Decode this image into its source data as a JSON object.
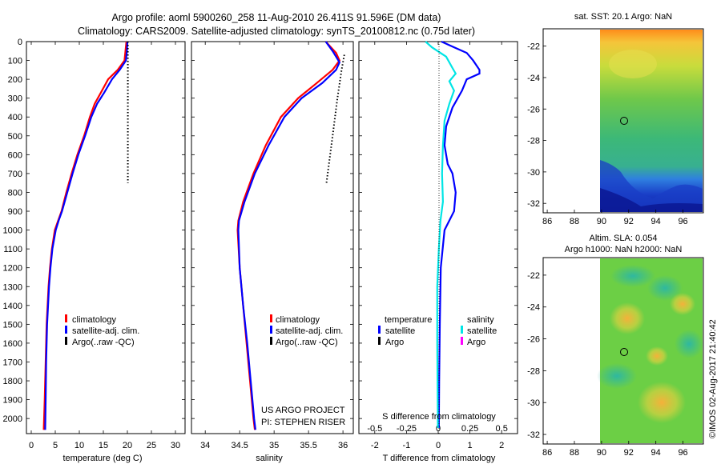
{
  "header": {
    "line1": "Argo profile: aoml 5900260_258 11-Aug-2010 26.411S 91.596E (DM data)",
    "line2": "Climatology: CARS2009. Satellite-adjusted climatology: synTS_20100812.nc (0.75d later)"
  },
  "colors": {
    "climatology": "#ff0000",
    "satellite": "#0000ff",
    "argo": "#000000",
    "sat_salinity": "#00e5e5",
    "argo_salinity": "#ff00ff"
  },
  "chart_data": [
    {
      "type": "line",
      "id": "temperature",
      "xlabel": "temperature (deg C)",
      "ylabel": "",
      "xlim": [
        -1,
        32
      ],
      "ylim": [
        2080,
        0
      ],
      "xticks": [
        "0",
        "5",
        "10",
        "15",
        "20",
        "25",
        "30"
      ],
      "yticks": [
        "0",
        "100",
        "200",
        "300",
        "400",
        "500",
        "600",
        "700",
        "800",
        "900",
        "1000",
        "1100",
        "1200",
        "1300",
        "1400",
        "1500",
        "1600",
        "1700",
        "1800",
        "1900",
        "2000"
      ],
      "legend": {
        "placement": "middle",
        "entries": [
          "climatology",
          "satellite-adj. clim.",
          "Argo(..raw -QC)"
        ]
      },
      "series": [
        {
          "name": "climatology",
          "style": "solid",
          "points": [
            [
              19.8,
              0
            ],
            [
              19.6,
              50
            ],
            [
              19.4,
              100
            ],
            [
              18,
              150
            ],
            [
              16,
              200
            ],
            [
              14.5,
              270
            ],
            [
              13.2,
              330
            ],
            [
              12.2,
              400
            ],
            [
              11,
              500
            ],
            [
              9.6,
              600
            ],
            [
              8.4,
              700
            ],
            [
              7.3,
              800
            ],
            [
              6.3,
              900
            ],
            [
              5.6,
              950
            ],
            [
              4.9,
              1000
            ],
            [
              4.3,
              1100
            ],
            [
              3.9,
              1200
            ],
            [
              3.6,
              1300
            ],
            [
              3.4,
              1400
            ],
            [
              3.2,
              1500
            ],
            [
              3,
              1700
            ],
            [
              2.8,
              1900
            ],
            [
              2.6,
              2060
            ]
          ]
        },
        {
          "name": "satellite-adj. clim.",
          "style": "solid",
          "points": [
            [
              20,
              0
            ],
            [
              19.9,
              50
            ],
            [
              19.7,
              100
            ],
            [
              18.4,
              150
            ],
            [
              16.8,
              200
            ],
            [
              15.2,
              270
            ],
            [
              13.7,
              330
            ],
            [
              12.5,
              400
            ],
            [
              11.2,
              500
            ],
            [
              9.8,
              600
            ],
            [
              8.6,
              700
            ],
            [
              7.5,
              800
            ],
            [
              6.4,
              900
            ],
            [
              5.7,
              950
            ],
            [
              5.1,
              1000
            ],
            [
              4.4,
              1100
            ],
            [
              4,
              1200
            ],
            [
              3.7,
              1300
            ],
            [
              3.5,
              1400
            ],
            [
              3.3,
              1500
            ],
            [
              3.1,
              1700
            ],
            [
              3,
              1900
            ],
            [
              2.9,
              2060
            ]
          ]
        },
        {
          "name": "Argo(..raw -QC)",
          "style": "dotted",
          "points": [
            [
              20.1,
              0
            ],
            [
              20.1,
              100
            ],
            [
              20.1,
              200
            ],
            [
              20.1,
              300
            ],
            [
              20.1,
              400
            ],
            [
              20.1,
              500
            ],
            [
              20.1,
              600
            ],
            [
              20.1,
              750
            ]
          ]
        }
      ]
    },
    {
      "type": "line",
      "id": "salinity",
      "xlabel": "salinity",
      "xlim": [
        33.8,
        36.15
      ],
      "ylim": [
        2080,
        0
      ],
      "xticks": [
        "34",
        "34.5",
        "35",
        "35.5",
        "36"
      ],
      "legend": {
        "placement": "middle",
        "entries": [
          "climatology",
          "satellite-adj. clim.",
          "Argo(..raw -QC)"
        ]
      },
      "annotation": [
        "US ARGO PROJECT",
        "PI: STEPHEN RISER"
      ],
      "series": [
        {
          "name": "climatology",
          "style": "solid",
          "points": [
            [
              35.75,
              0
            ],
            [
              35.9,
              60
            ],
            [
              35.95,
              100
            ],
            [
              35.85,
              150
            ],
            [
              35.62,
              220
            ],
            [
              35.35,
              300
            ],
            [
              35.1,
              400
            ],
            [
              34.88,
              550
            ],
            [
              34.7,
              700
            ],
            [
              34.55,
              850
            ],
            [
              34.48,
              950
            ],
            [
              34.47,
              1000
            ],
            [
              34.5,
              1200
            ],
            [
              34.55,
              1400
            ],
            [
              34.6,
              1600
            ],
            [
              34.65,
              1800
            ],
            [
              34.7,
              2000
            ],
            [
              34.72,
              2060
            ]
          ]
        },
        {
          "name": "satellite-adj. clim.",
          "style": "solid",
          "points": [
            [
              35.75,
              0
            ],
            [
              35.85,
              50
            ],
            [
              35.9,
              80
            ],
            [
              35.95,
              110
            ],
            [
              35.9,
              150
            ],
            [
              35.7,
              220
            ],
            [
              35.4,
              300
            ],
            [
              35.15,
              400
            ],
            [
              34.92,
              550
            ],
            [
              34.72,
              700
            ],
            [
              34.57,
              850
            ],
            [
              34.49,
              950
            ],
            [
              34.48,
              1000
            ],
            [
              34.5,
              1200
            ],
            [
              34.55,
              1400
            ],
            [
              34.61,
              1600
            ],
            [
              34.66,
              1800
            ],
            [
              34.71,
              2000
            ],
            [
              34.73,
              2060
            ]
          ]
        },
        {
          "name": "Argo(..raw -QC)",
          "style": "dotted",
          "points": [
            [
              36.02,
              70
            ],
            [
              35.98,
              150
            ],
            [
              35.92,
              300
            ],
            [
              35.85,
              500
            ],
            [
              35.76,
              750
            ]
          ]
        }
      ]
    },
    {
      "type": "line",
      "id": "difference",
      "xlabel_bottom": "T difference from climatology",
      "xlabel_top": "S difference from climatology",
      "xlim": [
        -2.5,
        2.5
      ],
      "ylim": [
        2080,
        0
      ],
      "xticks": [
        "-2",
        "-1",
        "0",
        "1",
        "2"
      ],
      "top_ticks": [
        "-0.5",
        "-0.25",
        "0",
        "0.25",
        "0.5"
      ],
      "legend": {
        "placement": "middle",
        "headers": [
          "temperature",
          "salinity"
        ],
        "entries": [
          "satellite",
          "Argo",
          "satellite",
          "Argo"
        ]
      },
      "series": [
        {
          "name": "temperature satellite",
          "color_key": "satellite",
          "points": [
            [
              0.1,
              0
            ],
            [
              0.5,
              30
            ],
            [
              0.9,
              60
            ],
            [
              1.1,
              100
            ],
            [
              1.3,
              150
            ],
            [
              1.3,
              170
            ],
            [
              0.9,
              200
            ],
            [
              0.75,
              260
            ],
            [
              0.45,
              350
            ],
            [
              0.25,
              450
            ],
            [
              0.2,
              550
            ],
            [
              0.3,
              650
            ],
            [
              0.45,
              700
            ],
            [
              0.55,
              800
            ],
            [
              0.5,
              900
            ],
            [
              0.2,
              1000
            ],
            [
              0.08,
              1200
            ],
            [
              0.05,
              1500
            ],
            [
              0.03,
              1800
            ],
            [
              0.02,
              2050
            ]
          ]
        },
        {
          "name": "salinity satellite",
          "color_key": "sat_salinity",
          "points": [
            [
              -0.4,
              0
            ],
            [
              -0.2,
              30
            ],
            [
              0.25,
              80
            ],
            [
              0.45,
              140
            ],
            [
              0.55,
              170
            ],
            [
              0.35,
              210
            ],
            [
              0.5,
              260
            ],
            [
              0.35,
              330
            ],
            [
              0.2,
              420
            ],
            [
              0.15,
              550
            ],
            [
              0.12,
              700
            ],
            [
              0.15,
              850
            ],
            [
              0.07,
              950
            ],
            [
              0.02,
              1100
            ],
            [
              -0.03,
              1300
            ],
            [
              -0.03,
              1600
            ],
            [
              -0.01,
              2050
            ]
          ]
        }
      ]
    }
  ],
  "maps": [
    {
      "id": "sst",
      "title": "sat. SST: 20.1  Argo: NaN",
      "xticks": [
        "86",
        "88",
        "90",
        "92",
        "94",
        "96"
      ],
      "yticks": [
        "-22",
        "-24",
        "-26",
        "-28",
        "-30",
        "-32"
      ],
      "marker": [
        91.6,
        -26.4
      ]
    },
    {
      "id": "sla",
      "title_line1": "Altim. SLA: 0.054",
      "title_line2": "Argo h1000: NaN h2000: NaN",
      "xticks": [
        "86",
        "88",
        "90",
        "92",
        "94",
        "96"
      ],
      "yticks": [
        "-22",
        "-24",
        "-26",
        "-28",
        "-30",
        "-32"
      ],
      "marker": [
        91.6,
        -26.4
      ]
    }
  ],
  "footer": {
    "timestamp": "©IMOS 02-Aug-2017 21:40:42"
  }
}
